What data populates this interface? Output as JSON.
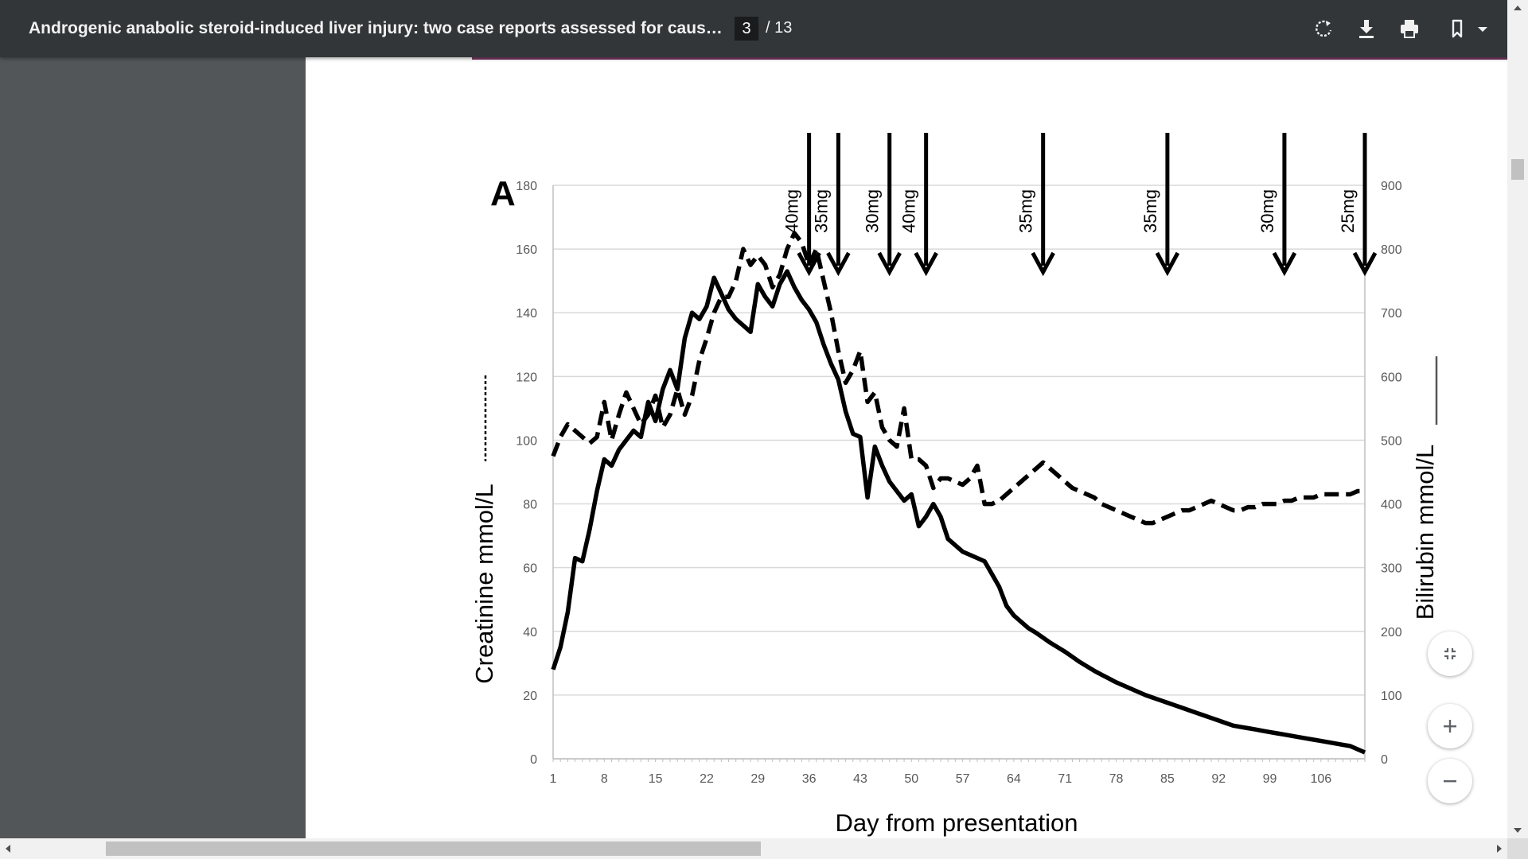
{
  "toolbar": {
    "title": "Androgenic anabolic steroid-induced liver injury: two case reports assessed for causality by t...",
    "page_current": "3",
    "page_total": "/ 13",
    "icons": [
      "rotate-icon",
      "download-icon",
      "print-icon",
      "bookmark-icon"
    ]
  },
  "zoom_controls": {
    "icons": [
      "fit-page-icon",
      "zoom-in-icon",
      "zoom-out-icon"
    ]
  },
  "chart_data": {
    "type": "line",
    "panel_label": "A",
    "xlabel": "Day from presentation",
    "ylabel_left": "Creatinine mmol/L",
    "ylabel_right": "Bilirubin mmol/L",
    "x_ticks": [
      "1",
      "8",
      "15",
      "22",
      "29",
      "36",
      "43",
      "50",
      "57",
      "64",
      "71",
      "78",
      "85",
      "92",
      "99",
      "106"
    ],
    "y_left_ticks": [
      "0",
      "20",
      "40",
      "60",
      "80",
      "100",
      "120",
      "140",
      "160",
      "180"
    ],
    "y_right_ticks": [
      "0",
      "100",
      "200",
      "300",
      "400",
      "500",
      "600",
      "700",
      "800",
      "900"
    ],
    "xlim": [
      1,
      112
    ],
    "ylim_left": [
      0,
      180
    ],
    "ylim_right": [
      0,
      900
    ],
    "grid": true,
    "series": [
      {
        "axis": "right",
        "style": "solid",
        "x": [
          1,
          2,
          3,
          4,
          5,
          6,
          7,
          8,
          9,
          10,
          11,
          12,
          13,
          14,
          15,
          16,
          17,
          18,
          19,
          20,
          21,
          22,
          23,
          24,
          25,
          26,
          27,
          28,
          29,
          30,
          31,
          32,
          33,
          34,
          35,
          36,
          37,
          38,
          39,
          40,
          41,
          42,
          43,
          44,
          45,
          46,
          47,
          48,
          49,
          50,
          51,
          52,
          53,
          54,
          55,
          56,
          57,
          58,
          59,
          60,
          61,
          62,
          63,
          64,
          65,
          66,
          67,
          68,
          69,
          70,
          71,
          72,
          73,
          74,
          75,
          76,
          77,
          78,
          79,
          80,
          81,
          82,
          83,
          84,
          85,
          86,
          87,
          88,
          89,
          90,
          91,
          92,
          93,
          94,
          95,
          96,
          97,
          98,
          99,
          100,
          101,
          102,
          103,
          104,
          105,
          106,
          107,
          108,
          109,
          110,
          111,
          112
        ],
        "values": [
          140,
          175,
          230,
          315,
          310,
          360,
          420,
          470,
          460,
          485,
          500,
          515,
          505,
          560,
          530,
          580,
          610,
          580,
          660,
          700,
          690,
          710,
          755,
          730,
          705,
          690,
          680,
          670,
          745,
          725,
          710,
          745,
          765,
          740,
          720,
          705,
          685,
          650,
          620,
          595,
          545,
          510,
          505,
          410,
          490,
          460,
          435,
          420,
          405,
          415,
          365,
          380,
          400,
          380,
          345,
          335,
          325,
          320,
          315,
          310,
          290,
          270,
          240,
          225,
          215,
          205,
          198,
          190,
          182,
          175,
          168,
          160,
          152,
          145,
          138,
          132,
          126,
          120,
          115,
          110,
          105,
          100,
          96,
          92,
          88,
          84,
          80,
          76,
          72,
          68,
          64,
          60,
          56,
          52,
          50,
          48,
          46,
          44,
          42,
          40,
          38,
          36,
          34,
          32,
          30,
          28,
          26,
          24,
          22,
          20,
          15,
          10
        ]
      },
      {
        "axis": "left",
        "style": "dashed",
        "x": [
          1,
          2,
          3,
          4,
          5,
          6,
          7,
          8,
          9,
          10,
          11,
          12,
          13,
          14,
          15,
          16,
          17,
          18,
          19,
          20,
          21,
          22,
          23,
          24,
          25,
          26,
          27,
          28,
          29,
          30,
          31,
          32,
          33,
          34,
          35,
          36,
          37,
          38,
          39,
          40,
          41,
          42,
          43,
          44,
          45,
          46,
          47,
          48,
          49,
          50,
          51,
          52,
          53,
          54,
          55,
          56,
          57,
          58,
          59,
          60,
          61,
          62,
          63,
          64,
          65,
          66,
          67,
          68,
          69,
          70,
          71,
          72,
          73,
          74,
          75,
          76,
          77,
          78,
          79,
          80,
          81,
          82,
          83,
          84,
          85,
          86,
          87,
          88,
          89,
          90,
          91,
          92,
          93,
          94,
          95,
          96,
          97,
          98,
          99,
          100,
          101,
          102,
          103,
          104,
          105,
          106,
          107,
          108,
          109,
          110,
          111,
          112
        ],
        "values": [
          95,
          101,
          105,
          103,
          101,
          99,
          101,
          112,
          100,
          108,
          115,
          110,
          105,
          108,
          114,
          104,
          108,
          116,
          108,
          114,
          125,
          132,
          140,
          145,
          145,
          150,
          160,
          155,
          158,
          155,
          148,
          152,
          160,
          165,
          162,
          155,
          160,
          150,
          140,
          128,
          118,
          122,
          128,
          112,
          115,
          104,
          100,
          98,
          110,
          94,
          94,
          92,
          85,
          88,
          88,
          87,
          86,
          88,
          92,
          80,
          80,
          81,
          83,
          85,
          87,
          89,
          91,
          93,
          91,
          89,
          87,
          85,
          84,
          83,
          82,
          80,
          79,
          78,
          77,
          76,
          75,
          74,
          74,
          75,
          76,
          77,
          78,
          78,
          79,
          80,
          81,
          80,
          79,
          78,
          78,
          79,
          79,
          80,
          80,
          80,
          81,
          81,
          82,
          82,
          82,
          83,
          83,
          83,
          83,
          83,
          84,
          84
        ]
      }
    ],
    "dose_annotations": [
      {
        "label": "40mg",
        "x": 36
      },
      {
        "label": "35mg",
        "x": 40
      },
      {
        "label": "30mg",
        "x": 47
      },
      {
        "label": "40mg",
        "x": 52
      },
      {
        "label": "35mg",
        "x": 68
      },
      {
        "label": "35mg",
        "x": 85
      },
      {
        "label": "30mg",
        "x": 101
      },
      {
        "label": "25mg",
        "x": 112
      }
    ]
  }
}
